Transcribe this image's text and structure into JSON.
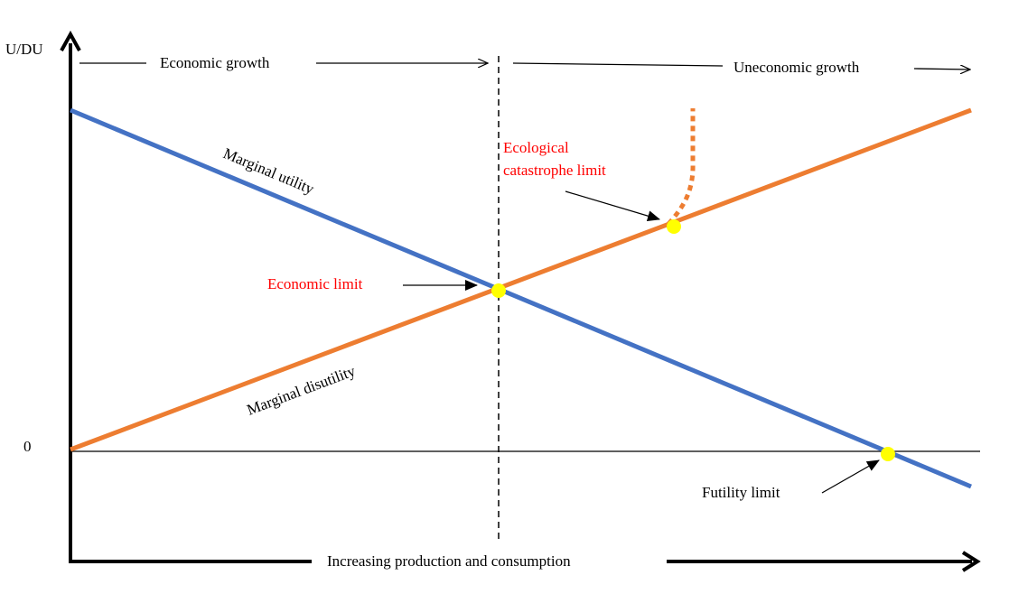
{
  "labels": {
    "y_axis": "U/DU",
    "zero": "0",
    "economic_growth": "Economic growth",
    "uneconomic_growth": "Uneconomic growth",
    "x_axis": "Increasing production and consumption",
    "marginal_utility": "Marginal utility",
    "marginal_disutility": "Marginal disutility",
    "economic_limit": "Economic limit",
    "ecological_limit_line1": "Ecological",
    "ecological_limit_line2": "catastrophe limit",
    "futility_limit": "Futility limit"
  },
  "colors": {
    "utility": "#4472c4",
    "disutility": "#ed7d31",
    "point": "#ffff00",
    "limit_text": "#ff0000",
    "axis": "#000000"
  }
}
